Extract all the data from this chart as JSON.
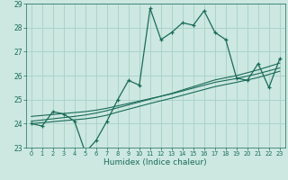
{
  "title": "",
  "xlabel": "Humidex (Indice chaleur)",
  "ylabel": "",
  "bg_color": "#cce8e0",
  "line_color": "#1a6b5a",
  "grid_color": "#a8cfc8",
  "x_values": [
    0,
    1,
    2,
    3,
    4,
    5,
    6,
    7,
    8,
    9,
    10,
    11,
    12,
    13,
    14,
    15,
    16,
    17,
    18,
    19,
    20,
    21,
    22,
    23
  ],
  "y_main": [
    24.0,
    23.9,
    24.5,
    24.4,
    24.1,
    22.8,
    23.3,
    24.1,
    25.0,
    25.8,
    25.6,
    28.8,
    27.5,
    27.8,
    28.2,
    28.1,
    28.7,
    27.8,
    27.5,
    25.9,
    25.8,
    26.5,
    25.5,
    26.7
  ],
  "y_trend1": [
    24.0,
    24.04,
    24.08,
    24.12,
    24.16,
    24.2,
    24.26,
    24.35,
    24.48,
    24.6,
    24.72,
    24.84,
    24.95,
    25.06,
    25.18,
    25.3,
    25.42,
    25.54,
    25.63,
    25.72,
    25.82,
    25.92,
    26.05,
    26.18
  ],
  "y_trend2": [
    24.3,
    24.34,
    24.38,
    24.42,
    24.46,
    24.5,
    24.56,
    24.64,
    24.74,
    24.84,
    24.94,
    25.04,
    25.14,
    25.24,
    25.36,
    25.48,
    25.6,
    25.72,
    25.8,
    25.88,
    25.98,
    26.08,
    26.2,
    26.32
  ],
  "y_trend3": [
    24.1,
    24.15,
    24.2,
    24.25,
    24.3,
    24.36,
    24.44,
    24.54,
    24.66,
    24.78,
    24.9,
    25.02,
    25.14,
    25.26,
    25.4,
    25.54,
    25.68,
    25.82,
    25.91,
    26.0,
    26.12,
    26.24,
    26.38,
    26.52
  ],
  "ylim": [
    23.0,
    29.0
  ],
  "yticks": [
    23,
    24,
    25,
    26,
    27,
    28,
    29
  ],
  "xticks": [
    0,
    1,
    2,
    3,
    4,
    5,
    6,
    7,
    8,
    9,
    10,
    11,
    12,
    13,
    14,
    15,
    16,
    17,
    18,
    19,
    20,
    21,
    22,
    23
  ]
}
